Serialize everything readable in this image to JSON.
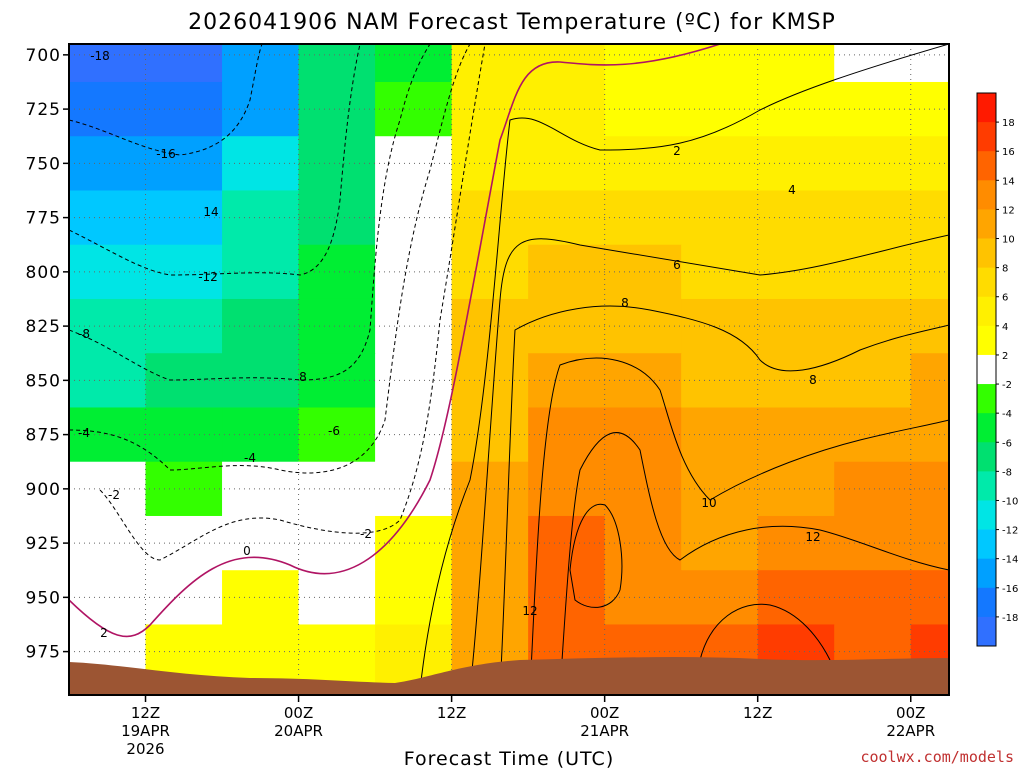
{
  "chart_data": {
    "type": "heatmap",
    "title": "2026041906 NAM Forecast Temperature (ºC) for KMSP",
    "xlabel": "Forecast Time (UTC)",
    "ylabel": "",
    "x_ticks": [
      {
        "l1": "12Z",
        "l2": "19APR",
        "l3": "2026"
      },
      {
        "l1": "00Z",
        "l2": "20APR",
        "l3": ""
      },
      {
        "l1": "12Z",
        "l2": "",
        "l3": ""
      },
      {
        "l1": "00Z",
        "l2": "21APR",
        "l3": ""
      },
      {
        "l1": "12Z",
        "l2": "",
        "l3": ""
      },
      {
        "l1": "00Z",
        "l2": "22APR",
        "l3": ""
      },
      {
        "l1": "12Z",
        "l2": "",
        "l3": ""
      }
    ],
    "x_hours": [
      6,
      12,
      18,
      24,
      30,
      36,
      42,
      48,
      54,
      60,
      66,
      72
    ],
    "xlim_hours": [
      3,
      72
    ],
    "y_levels_hPa": [
      700,
      725,
      750,
      775,
      800,
      825,
      850,
      875,
      900,
      925,
      950,
      975
    ],
    "ylim_hPa": [
      695,
      995
    ],
    "ground_color": "#9c5533",
    "colorbar": {
      "labels": [
        "18",
        "16",
        "14",
        "12",
        "10",
        "8",
        "6",
        "4",
        "2",
        "-2",
        "-4",
        "-6",
        "-8",
        "-10",
        "-12",
        "-14",
        "-16",
        "-18"
      ],
      "colors": [
        "#ff1a00",
        "#ff3c00",
        "#ff6400",
        "#ff8c00",
        "#ffa500",
        "#ffc300",
        "#ffdc00",
        "#fff000",
        "#ffff00",
        "#ffffff",
        "#33ff00",
        "#00ee33",
        "#00e070",
        "#00eaaa",
        "#00e5e5",
        "#00c8ff",
        "#00a0ff",
        "#1478ff",
        "#3070ff"
      ]
    },
    "temperature_C": [
      [
        -18,
        -18,
        -14,
        -7,
        -4,
        5,
        4,
        2,
        2,
        3,
        0,
        0
      ],
      [
        -17,
        -17,
        -14,
        -7,
        -3,
        5,
        4,
        3,
        2,
        2,
        2,
        3
      ],
      [
        -14,
        -14,
        -11,
        -6,
        -2,
        5,
        5,
        4,
        4,
        4,
        4,
        5
      ],
      [
        -13,
        -12,
        -9,
        -6,
        -2,
        6,
        6,
        6,
        6,
        6,
        6,
        6
      ],
      [
        -11,
        -10,
        -8,
        -5,
        -1,
        7,
        8,
        8,
        7,
        7,
        7,
        7
      ],
      [
        -9,
        -8,
        -7,
        -5,
        0,
        8,
        9,
        9,
        8,
        8,
        8,
        9
      ],
      [
        -8,
        -7,
        -6,
        -4,
        0,
        9,
        10,
        10,
        9,
        9,
        9,
        10
      ],
      [
        -5,
        -5,
        -4,
        -3,
        1,
        9,
        12,
        12,
        10,
        10,
        10,
        11
      ],
      [
        -2,
        -3,
        -2,
        -1,
        1,
        10,
        13,
        13,
        11,
        11,
        12,
        12
      ],
      [
        -1,
        -1,
        0,
        0,
        2,
        11,
        14,
        13,
        11,
        12,
        13,
        13
      ],
      [
        0,
        1,
        2,
        1,
        3,
        11,
        14,
        13,
        13,
        14,
        14,
        15
      ],
      [
        1,
        2,
        3,
        2,
        4,
        11,
        14,
        14,
        14,
        16,
        14,
        17
      ]
    ],
    "contour_labels": [
      "-18",
      "-16",
      "14",
      "-12",
      "-8",
      "8",
      "-6",
      "-4",
      "-4",
      "-2",
      "-2",
      "0",
      "2",
      "12",
      "10",
      "12",
      "8",
      "8",
      "6",
      "4",
      "2"
    ]
  },
  "credit": "coolwx.com/models"
}
